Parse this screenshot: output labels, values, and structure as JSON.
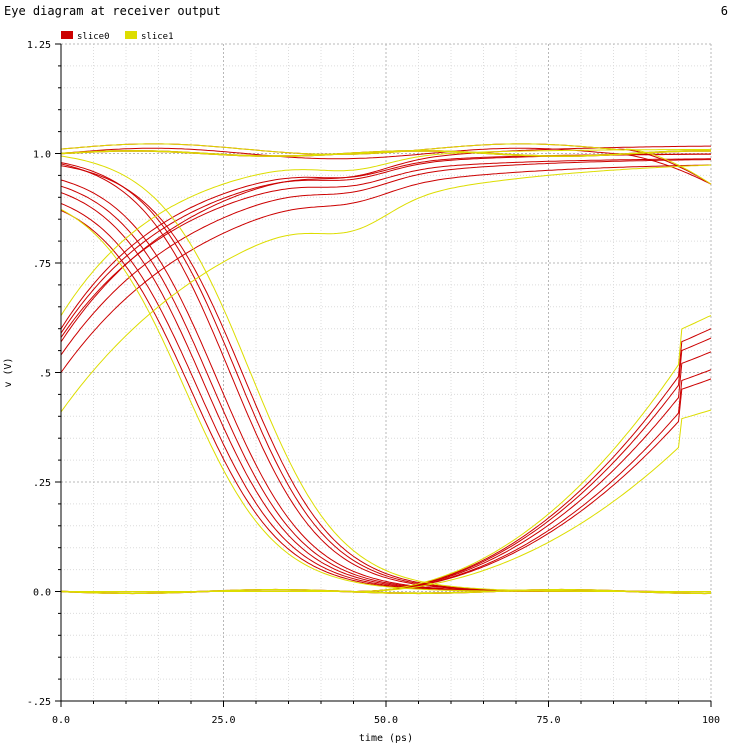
{
  "header": {
    "title": "Eye diagram at receiver output",
    "page_number": "6"
  },
  "chart_data": {
    "type": "line",
    "title": "Eye diagram at receiver output",
    "xlabel": "time (ps)",
    "ylabel": "v (V)",
    "xlim": [
      0,
      100
    ],
    "ylim": [
      -0.25,
      1.25
    ],
    "x_ticks": [
      {
        "value": 0,
        "label": "0.0"
      },
      {
        "value": 25,
        "label": "25.0"
      },
      {
        "value": 50,
        "label": "50.0"
      },
      {
        "value": 75,
        "label": "75.0"
      },
      {
        "value": 100,
        "label": "100"
      }
    ],
    "y_ticks": [
      {
        "value": 1.25,
        "label": "1.25"
      },
      {
        "value": 1.0,
        "label": "1.0"
      },
      {
        "value": 0.75,
        "label": ".75"
      },
      {
        "value": 0.5,
        "label": ".5"
      },
      {
        "value": 0.25,
        "label": ".25"
      },
      {
        "value": 0.0,
        "label": "0.0"
      },
      {
        "value": -0.25,
        "label": "-.25"
      }
    ],
    "grid": true,
    "legend_position": "top-left",
    "colors": {
      "slice0": "#cc0000",
      "slice1": "#dddd00"
    },
    "series": [
      {
        "name": "slice0",
        "color": "#cc0000",
        "traces": [
          {
            "kind": "fall",
            "start": 1.0,
            "t": 26
          },
          {
            "kind": "fall",
            "start": 1.0,
            "t": 27
          },
          {
            "kind": "fall",
            "start": 0.99,
            "t": 28
          },
          {
            "kind": "fall",
            "start": 0.97,
            "t": 24
          },
          {
            "kind": "fall",
            "start": 0.96,
            "t": 23
          },
          {
            "kind": "fall",
            "start": 0.95,
            "t": 22
          },
          {
            "kind": "fall",
            "start": 0.93,
            "t": 21
          },
          {
            "kind": "fall",
            "start": 0.92,
            "t": 20
          },
          {
            "kind": "rise",
            "start": 0.6,
            "t": 11,
            "high": 1.0
          },
          {
            "kind": "rise",
            "start": 0.59,
            "t": 12,
            "high": 1.0
          },
          {
            "kind": "rise",
            "start": 0.58,
            "t": 13,
            "high": 0.99
          },
          {
            "kind": "rise",
            "start": 0.54,
            "t": 15,
            "high": 0.99
          },
          {
            "kind": "rise",
            "start": 0.5,
            "t": 17,
            "high": 0.98
          },
          {
            "kind": "rise",
            "start": 0.57,
            "t": 14,
            "high": 1.02
          },
          {
            "kind": "flat",
            "v": 1.0
          },
          {
            "kind": "flat",
            "v": 0.0
          },
          {
            "kind": "fall2",
            "start": 1.01,
            "t": 94
          },
          {
            "kind": "fall2",
            "start": 1.0,
            "t": 93
          },
          {
            "kind": "rise2",
            "start": 0.0,
            "t": 75,
            "end": 0.6
          },
          {
            "kind": "rise2",
            "start": 0.0,
            "t": 77,
            "end": 0.58
          },
          {
            "kind": "rise2",
            "start": 0.0,
            "t": 79,
            "end": 0.55
          },
          {
            "kind": "rise2",
            "start": 0.0,
            "t": 81,
            "end": 0.51
          },
          {
            "kind": "rise2",
            "start": 0.0,
            "t": 83,
            "end": 0.49
          }
        ]
      },
      {
        "name": "slice1",
        "color": "#dddd00",
        "traces": [
          {
            "kind": "fall",
            "start": 1.01,
            "t": 29
          },
          {
            "kind": "fall",
            "start": 0.93,
            "t": 19
          },
          {
            "kind": "rise",
            "start": 0.63,
            "t": 10,
            "high": 1.01
          },
          {
            "kind": "rise",
            "start": 0.41,
            "t": 22,
            "high": 0.99
          },
          {
            "kind": "flat",
            "v": 1.0
          },
          {
            "kind": "flat",
            "v": 0.0
          },
          {
            "kind": "fall2",
            "start": 1.01,
            "t": 95
          },
          {
            "kind": "rise2",
            "start": 0.0,
            "t": 74,
            "end": 0.63
          },
          {
            "kind": "rise2",
            "start": 0.0,
            "t": 86,
            "end": 0.42
          }
        ]
      }
    ]
  }
}
